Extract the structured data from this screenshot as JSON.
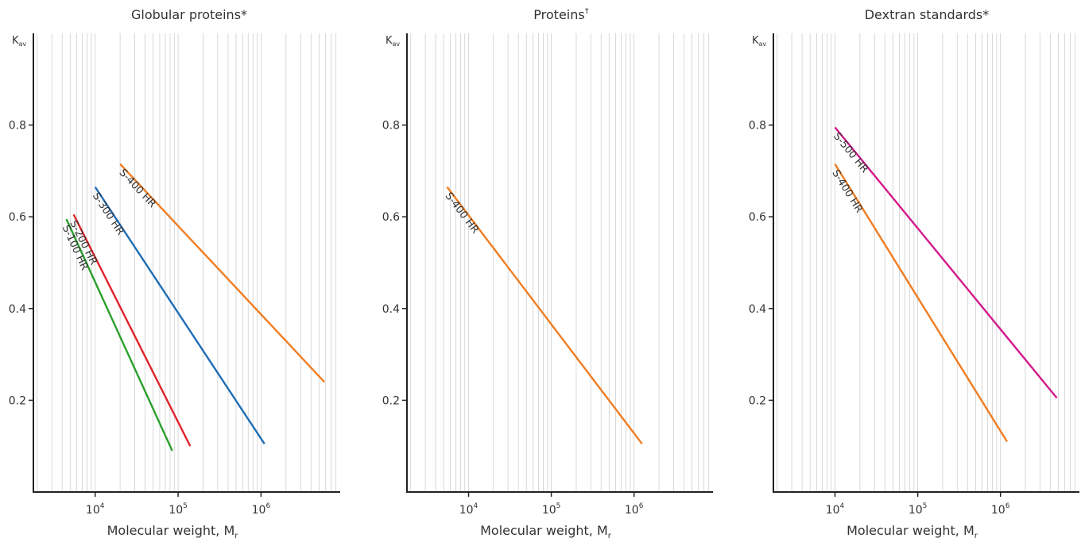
{
  "chart_data": [
    {
      "type": "line",
      "title": "Globular proteins*",
      "xlabel": "Molecular weight, M",
      "xlabel_sub": "r",
      "ylabel": "K",
      "ylabel_sub": "av",
      "x_scale": "log",
      "xlim": [
        1800,
        9000000
      ],
      "ylim": [
        0,
        1.0
      ],
      "x_ticks": [
        {
          "value": 10000,
          "base": "10",
          "exp": "4"
        },
        {
          "value": 100000,
          "base": "10",
          "exp": "5"
        },
        {
          "value": 1000000,
          "base": "10",
          "exp": "6"
        }
      ],
      "y_ticks": [
        {
          "value": 0.2,
          "label": "0.2"
        },
        {
          "value": 0.4,
          "label": "0.4"
        },
        {
          "value": 0.6,
          "label": "0.6"
        },
        {
          "value": 0.8,
          "label": "0.8"
        }
      ],
      "grid": "vertical",
      "series": [
        {
          "name": "S-100 HR",
          "color": "#2ca02c",
          "x": [
            4500,
            85000
          ],
          "y": [
            0.595,
            0.09
          ]
        },
        {
          "name": "S-200 HR",
          "color": "#e0232b",
          "x": [
            5500,
            140000
          ],
          "y": [
            0.605,
            0.1
          ]
        },
        {
          "name": "S-300 HR",
          "color": "#1f6db5",
          "x": [
            10000,
            1100000
          ],
          "y": [
            0.665,
            0.105
          ]
        },
        {
          "name": "S-400 HR",
          "color": "#f07d22",
          "x": [
            20000,
            5800000
          ],
          "y": [
            0.715,
            0.24
          ]
        }
      ]
    },
    {
      "type": "line",
      "title": "Proteins",
      "title_sup": "†",
      "xlabel": "Molecular weight, M",
      "xlabel_sub": "r",
      "ylabel": "K",
      "ylabel_sub": "av",
      "x_scale": "log",
      "xlim": [
        1800,
        9000000
      ],
      "ylim": [
        0,
        1.0
      ],
      "x_ticks": [
        {
          "value": 10000,
          "base": "10",
          "exp": "4"
        },
        {
          "value": 100000,
          "base": "10",
          "exp": "5"
        },
        {
          "value": 1000000,
          "base": "10",
          "exp": "6"
        }
      ],
      "y_ticks": [
        {
          "value": 0.2,
          "label": "0.2"
        },
        {
          "value": 0.4,
          "label": "0.4"
        },
        {
          "value": 0.6,
          "label": "0.6"
        },
        {
          "value": 0.8,
          "label": "0.8"
        }
      ],
      "grid": "vertical",
      "series": [
        {
          "name": "S-400 HR",
          "color": "#f07d22",
          "x": [
            5500,
            1250000
          ],
          "y": [
            0.665,
            0.105
          ]
        }
      ]
    },
    {
      "type": "line",
      "title": "Dextran standards*",
      "xlabel": "Molecular weight, M",
      "xlabel_sub": "r",
      "ylabel": "K",
      "ylabel_sub": "av",
      "x_scale": "log",
      "xlim": [
        1800,
        9000000
      ],
      "ylim": [
        0,
        1.0
      ],
      "x_ticks": [
        {
          "value": 10000,
          "base": "10",
          "exp": "4"
        },
        {
          "value": 100000,
          "base": "10",
          "exp": "5"
        },
        {
          "value": 1000000,
          "base": "10",
          "exp": "6"
        }
      ],
      "y_ticks": [
        {
          "value": 0.2,
          "label": "0.2"
        },
        {
          "value": 0.4,
          "label": "0.4"
        },
        {
          "value": 0.6,
          "label": "0.6"
        },
        {
          "value": 0.8,
          "label": "0.8"
        }
      ],
      "grid": "vertical",
      "series": [
        {
          "name": "S-500 HR",
          "color": "#d4198c",
          "x": [
            10000,
            4800000
          ],
          "y": [
            0.795,
            0.205
          ]
        },
        {
          "name": "S-400 HR",
          "color": "#f07d22",
          "x": [
            10000,
            1200000
          ],
          "y": [
            0.715,
            0.11
          ]
        }
      ]
    }
  ]
}
